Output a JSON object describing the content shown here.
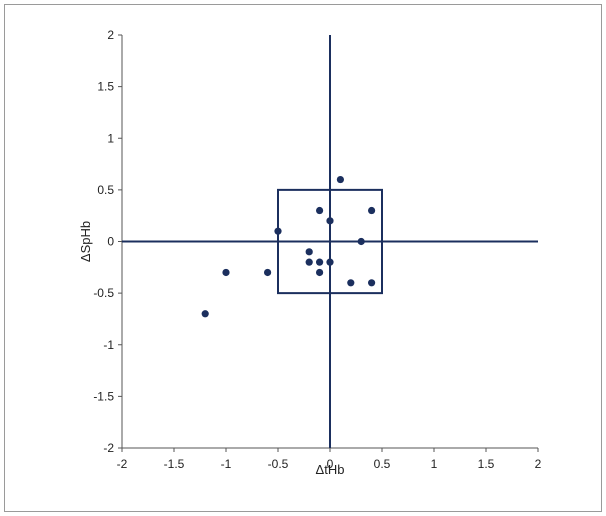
{
  "chart_data": {
    "type": "scatter",
    "title": "",
    "xlabel": "ΔtHb",
    "ylabel": "ΔSpHb",
    "xlim": [
      -2,
      2
    ],
    "ylim": [
      -2,
      2
    ],
    "xticks": [
      "-2",
      "-1.5",
      "-1",
      "-0.5",
      "0",
      "0.5",
      "1",
      "1.5",
      "2"
    ],
    "yticks": [
      "-2",
      "-1.5",
      "-1",
      "-0.5",
      "0",
      "0.5",
      "1",
      "1.5",
      "2"
    ],
    "grid": false,
    "legend": "none",
    "color": "#1b2f5e",
    "box": {
      "x": [
        -0.5,
        0.5
      ],
      "y": [
        -0.5,
        0.5
      ]
    },
    "points": [
      {
        "x": -1.2,
        "y": -0.7
      },
      {
        "x": -1.0,
        "y": -0.3
      },
      {
        "x": -0.6,
        "y": -0.3
      },
      {
        "x": -0.5,
        "y": 0.1
      },
      {
        "x": -0.2,
        "y": -0.1
      },
      {
        "x": -0.2,
        "y": -0.2
      },
      {
        "x": -0.1,
        "y": -0.2
      },
      {
        "x": -0.1,
        "y": -0.3
      },
      {
        "x": -0.1,
        "y": 0.3
      },
      {
        "x": 0.0,
        "y": 0.2
      },
      {
        "x": 0.0,
        "y": -0.2
      },
      {
        "x": 0.1,
        "y": 0.6
      },
      {
        "x": 0.2,
        "y": -0.4
      },
      {
        "x": 0.3,
        "y": 0.0
      },
      {
        "x": 0.4,
        "y": 0.3
      },
      {
        "x": 0.4,
        "y": -0.4
      }
    ]
  }
}
